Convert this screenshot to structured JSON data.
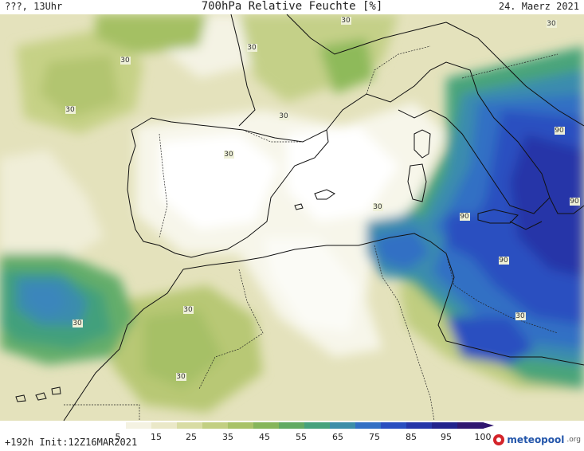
{
  "header": {
    "left": "???, 13Uhr",
    "title": "700hPa Relative Feuchte [%]",
    "date": "24. Maerz 2021"
  },
  "legend": {
    "labels": [
      "5",
      "15",
      "25",
      "35",
      "45",
      "55",
      "65",
      "75",
      "85",
      "95",
      "100"
    ],
    "colors": [
      "#ffffff",
      "#f4f2e2",
      "#eae8c8",
      "#d8dca4",
      "#c2cf82",
      "#a8c268",
      "#86b65a",
      "#62aa62",
      "#46a27c",
      "#3c8ea8",
      "#3270c4",
      "#2a4fc0",
      "#2636a8",
      "#22238c",
      "#301770"
    ]
  },
  "contour_labels": [
    "30",
    "30",
    "30",
    "30",
    "30",
    "30",
    "30",
    "30",
    "30",
    "30",
    "30",
    "30",
    "90",
    "90",
    "90",
    "90"
  ],
  "footer": {
    "forecast": "+192h Init:12Z16MAR2021",
    "logo": "meteopool",
    "logo_suffix": ".org"
  }
}
